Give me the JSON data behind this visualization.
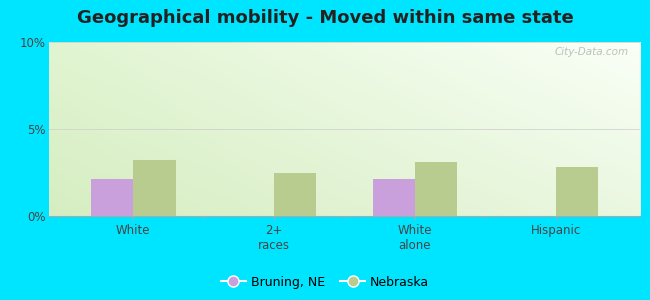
{
  "title": "Geographical mobility - Moved within same state",
  "categories": [
    "White",
    "2+\nraces",
    "White\nalone",
    "Hispanic"
  ],
  "bruning_values": [
    2.1,
    0.0,
    2.1,
    0.0
  ],
  "nebraska_values": [
    3.2,
    2.5,
    3.1,
    2.8
  ],
  "bruning_color": "#c9a0dc",
  "nebraska_color": "#b8cc90",
  "ylim": [
    0,
    10
  ],
  "bar_width": 0.3,
  "outer_background": "#00e5ff",
  "title_fontsize": 13,
  "legend_labels": [
    "Bruning, NE",
    "Nebraska"
  ],
  "watermark": "City-Data.com"
}
